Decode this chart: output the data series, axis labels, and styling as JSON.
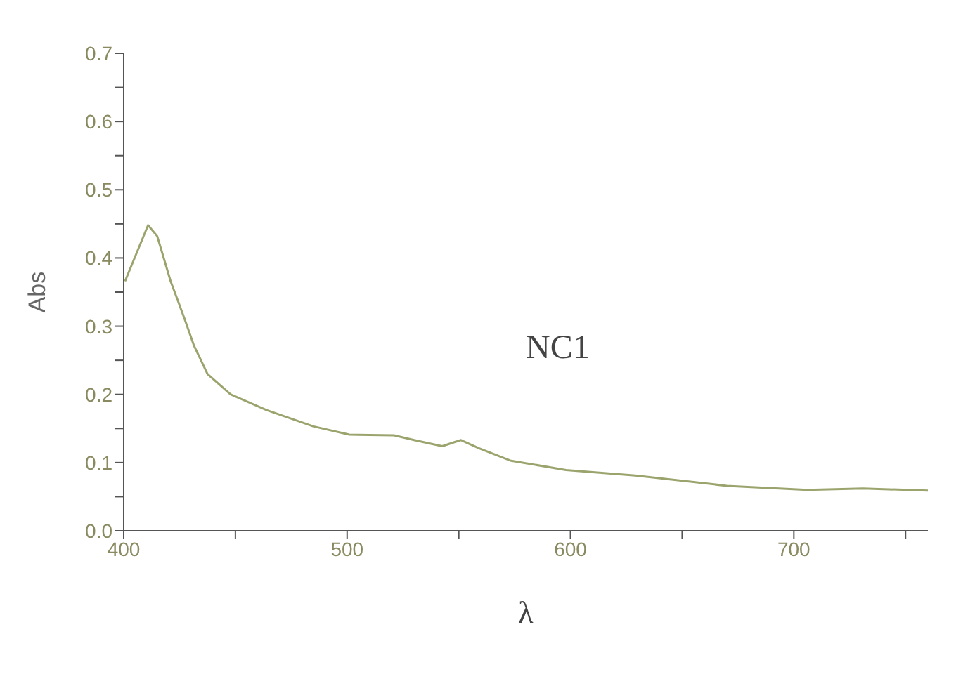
{
  "chart_data": {
    "type": "line",
    "xlabel": "λ",
    "ylabel": "Abs",
    "x": [
      400.6,
      410.9,
      415,
      421,
      427,
      431.4,
      437.5,
      447.8,
      464,
      485,
      501,
      521,
      530,
      542.6,
      548,
      551,
      559,
      573,
      598,
      629,
      670,
      706,
      731,
      760
    ],
    "series": [
      {
        "name": "NC1",
        "color": "#9ca46e",
        "values": [
          0.366,
          0.448,
          0.432,
          0.366,
          0.313,
          0.272,
          0.23,
          0.2,
          0.177,
          0.153,
          0.141,
          0.14,
          0.133,
          0.124,
          0.13,
          0.133,
          0.121,
          0.103,
          0.089,
          0.081,
          0.066,
          0.06,
          0.062,
          0.059
        ]
      }
    ],
    "xlim": [
      400,
      760
    ],
    "xticks": [
      400,
      {
        "value": 450,
        "label": null
      },
      500,
      {
        "value": 550,
        "label": null
      },
      600,
      {
        "value": 650,
        "label": null
      },
      700,
      {
        "value": 750,
        "label": null
      }
    ],
    "ylim": [
      0,
      0.7
    ],
    "yticks": [
      {
        "value": 0,
        "label": "0.0"
      },
      {
        "value": 0.05,
        "label": null
      },
      0.1,
      {
        "value": 0.15,
        "label": null
      },
      0.2,
      {
        "value": 0.25,
        "label": null
      },
      0.3,
      {
        "value": 0.35,
        "label": null
      },
      0.4,
      {
        "value": 0.45,
        "label": null
      },
      0.5,
      {
        "value": 0.55,
        "label": null
      },
      0.6,
      {
        "value": 0.65,
        "label": null
      },
      0.7
    ],
    "grid": false,
    "legend": false,
    "marker": "none",
    "line_style": "solid"
  }
}
